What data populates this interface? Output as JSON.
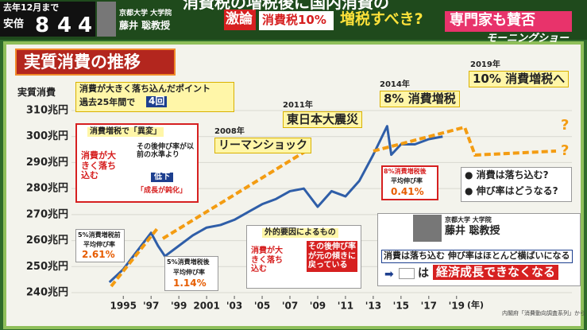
{
  "header": {
    "note": "去年12月まで",
    "name": "安倍",
    "digits": [
      "8",
      "4",
      "4"
    ],
    "guest_affiliation": "京都大学 大学院",
    "guest_name": "藤井 聡教授",
    "headline": "消費税の増税後に国内消費の",
    "tag": "激論",
    "topic": "消費税10%",
    "question": "増税すべき?",
    "summary": "専門家も賛否",
    "program": "モーニングショー"
  },
  "chart_data": {
    "type": "line",
    "title": "実質消費の推移",
    "y_label": "実質消費",
    "x_unit": "(年)",
    "source": "内閣府「消費動向調査系列」から",
    "color": "#2f5ea8",
    "grid": true,
    "x": [
      1994,
      1995,
      1996,
      1997,
      1997.5,
      1998,
      1999,
      2000,
      2001,
      2002,
      2003,
      2004,
      2005,
      2006,
      2007,
      2008,
      2009,
      2010,
      2011,
      2012,
      2013,
      2014,
      2014.3,
      2015,
      2016,
      2017,
      2018
    ],
    "values": [
      244,
      249,
      256,
      263,
      258,
      254,
      258,
      262,
      265,
      266,
      268,
      271,
      274,
      276,
      279,
      280,
      273,
      279,
      277,
      283,
      293,
      304,
      293,
      297,
      297,
      299,
      300
    ],
    "xlim": [
      1993.5,
      2020.5
    ],
    "xticks": [
      1995,
      {
        "value": 1997,
        "label": "'97"
      },
      {
        "value": 1999,
        "label": "'99"
      },
      2001,
      {
        "value": 2003,
        "label": "'03"
      },
      {
        "value": 2005,
        "label": "'05"
      },
      {
        "value": 2007,
        "label": "'07"
      },
      {
        "value": 2009,
        "label": "'09"
      },
      {
        "value": 2011,
        "label": "'11"
      },
      {
        "value": 2013,
        "label": "'13"
      },
      {
        "value": 2015,
        "label": "'15"
      },
      {
        "value": 2017,
        "label": "'17"
      },
      {
        "value": 2019,
        "label": "'19"
      }
    ],
    "ylim": [
      240,
      310
    ],
    "yticks": [
      {
        "value": 240,
        "label": "240兆円"
      },
      {
        "value": 250,
        "label": "250兆円"
      },
      {
        "value": 260,
        "label": "260兆円"
      },
      {
        "value": 270,
        "label": "270兆円"
      },
      {
        "value": 280,
        "label": "280兆円"
      },
      {
        "value": 290,
        "label": "290兆円"
      },
      {
        "value": 300,
        "label": "300兆円"
      },
      {
        "value": 310,
        "label": "310兆円"
      }
    ],
    "annotations": {
      "point": [
        "消費が大きく落ち込んだポイント",
        "過去25年間で",
        "4回"
      ],
      "lehman": [
        "2008年",
        "リーマンショック"
      ],
      "quake": [
        "2011年",
        "東日本大震災"
      ],
      "tax8": [
        "2014年",
        "8% 消費増税"
      ],
      "tax10": [
        "2019年",
        "10% 消費増税へ"
      ],
      "anomaly": [
        "消費増税で「異変」",
        "消費が大きく落ち込む",
        "その後伸び率が以前の水準より",
        "低下",
        "「成長が鈍化」"
      ],
      "before5": [
        "5%消費増税前",
        "平均伸び率",
        "2.61%"
      ],
      "after5": [
        "5%消費増税後",
        "平均伸び率",
        "1.14%"
      ],
      "after8": [
        "8%消費増税後",
        "平均伸び率",
        "0.41%"
      ],
      "external": [
        "外的要因によるもの",
        "消費が大きく落ち込む",
        "その後伸び率が元の傾きに戻っている"
      ],
      "questions": [
        "● 消費は落ち込む?",
        "● 伸び率はどうなる?"
      ],
      "expert": [
        "京都大学 大学院",
        "藤井 聡教授",
        "消費は落ち込む 伸び率はほとんど横ばいになる",
        "➡",
        "は",
        "経済成長できなくなる"
      ]
    }
  }
}
